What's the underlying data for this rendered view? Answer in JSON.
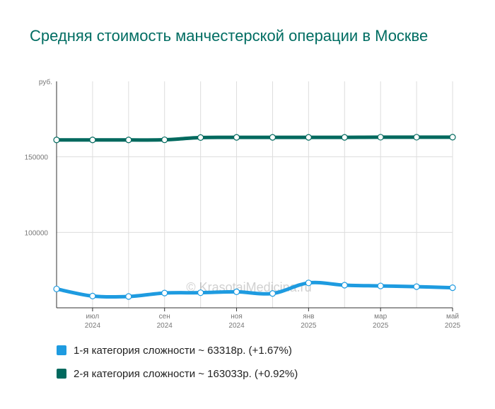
{
  "title": "Средняя стоимость манчестерской операции в Москве",
  "colors": {
    "title": "#006d62"
  },
  "watermark": "© KrasotaiMedicina.ru",
  "chart_data": {
    "type": "line",
    "y_unit_label": "руб.",
    "ylim": [
      50000,
      200000
    ],
    "y_ticks": [
      {
        "value": 100000,
        "label": "100000"
      },
      {
        "value": 150000,
        "label": "150000"
      }
    ],
    "grid": true,
    "points_count": 12,
    "x_ticks": [
      {
        "index": 1,
        "label": "июл",
        "year": "2024"
      },
      {
        "index": 3,
        "label": "сен",
        "year": "2024"
      },
      {
        "index": 5,
        "label": "ноя",
        "year": "2024"
      },
      {
        "index": 7,
        "label": "янв",
        "year": "2025"
      },
      {
        "index": 9,
        "label": "мар",
        "year": "2025"
      },
      {
        "index": 11,
        "label": "май",
        "year": "2025"
      }
    ],
    "series": [
      {
        "color": "#1e9be0",
        "values": [
          62500,
          57800,
          57500,
          59800,
          60000,
          60600,
          59500,
          66500,
          65000,
          64500,
          64000,
          63318
        ]
      },
      {
        "color": "#00695e",
        "values": [
          161200,
          161200,
          161200,
          161300,
          162800,
          162900,
          162900,
          162900,
          162900,
          163000,
          163000,
          163033
        ]
      }
    ],
    "legend_position": "bottom",
    "legend": [
      {
        "text": "1-я категория сложности ~ 63318р. (+1.67%)",
        "color": "#1e9be0"
      },
      {
        "text": "2-я категория сложности ~ 163033р. (+0.92%)",
        "color": "#00695e"
      }
    ]
  }
}
